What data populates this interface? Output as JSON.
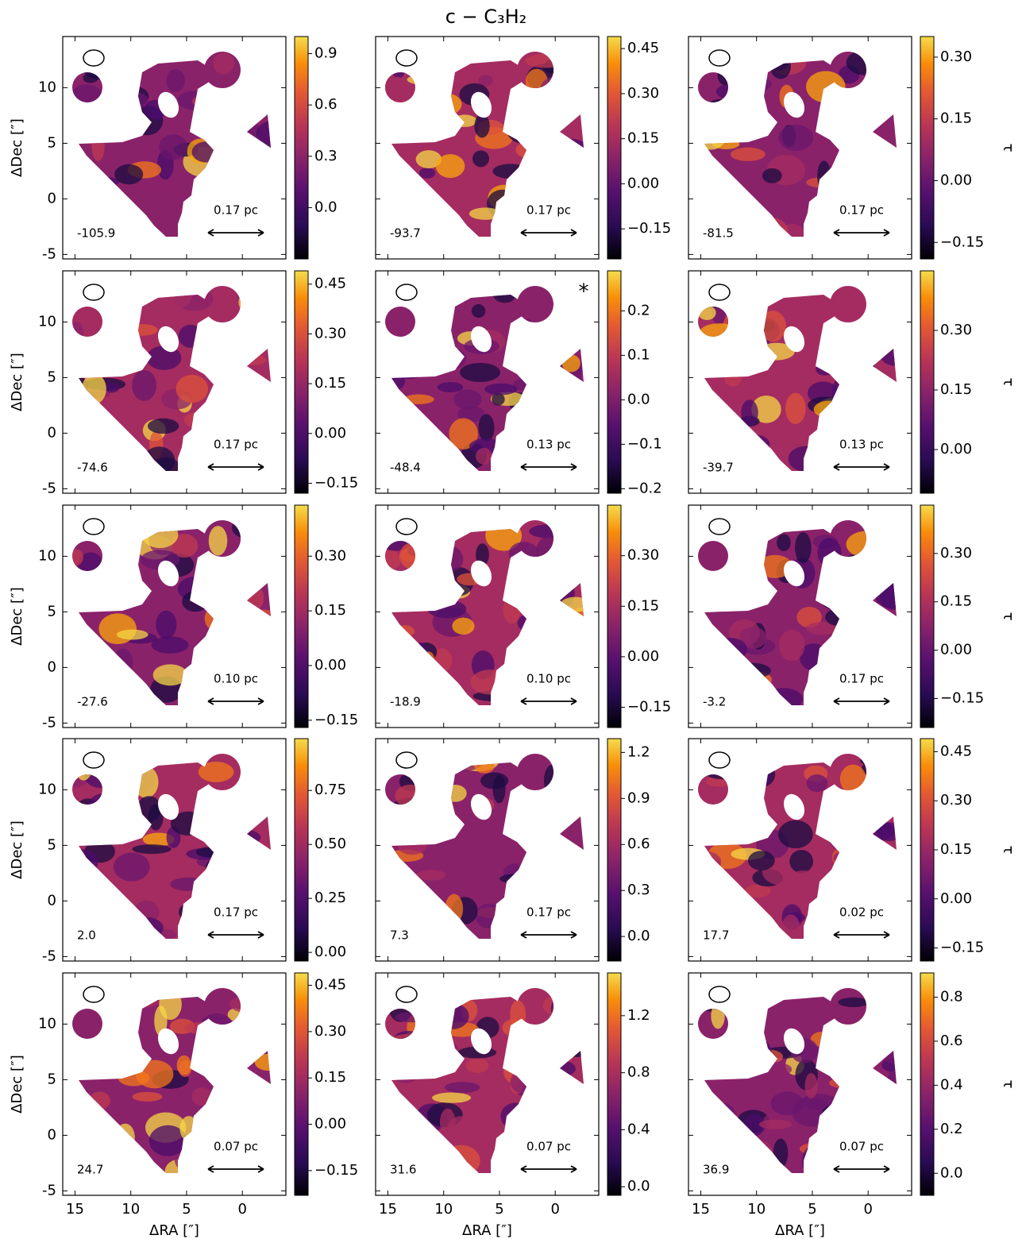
{
  "chart_data": {
    "type": "heatmap",
    "title": "c − C₃H₂",
    "xlabel": "ΔRA [″]",
    "ylabel": "ΔDec [″]",
    "colorbar_label": "τ",
    "xlim": [
      16.1,
      -3.9
    ],
    "ylim": [
      -5.4,
      14.6
    ],
    "xticks": [
      15,
      10,
      5,
      0
    ],
    "yticks": [
      -5,
      0,
      5,
      10
    ],
    "panels": [
      {
        "velocity": "-105.9",
        "scale_label": "0.17 pc",
        "clim": [
          -0.3,
          1.0
        ],
        "cticks": [
          {
            "value": 0,
            "label": "0.0"
          },
          0.3,
          0.6,
          0.9
        ]
      },
      {
        "velocity": "-93.7",
        "scale_label": "0.17 pc",
        "clim": [
          -0.25,
          0.49
        ],
        "cticks": [
          {
            "value": -0.15,
            "label": "−0.15"
          },
          {
            "value": 0,
            "label": "0.00"
          },
          0.15,
          {
            "value": 0.3,
            "label": "0.30"
          },
          0.45
        ]
      },
      {
        "velocity": "-81.5",
        "scale_label": "0.17 pc",
        "clim": [
          -0.19,
          0.35
        ],
        "cticks": [
          {
            "value": -0.15,
            "label": "−0.15"
          },
          {
            "value": 0,
            "label": "0.00"
          },
          0.15,
          {
            "value": 0.3,
            "label": "0.30"
          }
        ]
      },
      {
        "velocity": "-74.6",
        "scale_label": "0.17 pc",
        "clim": [
          -0.18,
          0.49
        ],
        "cticks": [
          {
            "value": -0.15,
            "label": "−0.15"
          },
          {
            "value": 0,
            "label": "0.00"
          },
          0.15,
          {
            "value": 0.3,
            "label": "0.30"
          },
          0.45
        ]
      },
      {
        "velocity": "-48.4",
        "scale_label": "0.13 pc",
        "annotation": "*",
        "clim": [
          -0.21,
          0.29
        ],
        "cticks": [
          {
            "value": -0.2,
            "label": "−0.2"
          },
          {
            "value": -0.1,
            "label": "−0.1"
          },
          {
            "value": 0,
            "label": "0.0"
          },
          0.1,
          0.2
        ]
      },
      {
        "velocity": "-39.7",
        "scale_label": "0.13 pc",
        "clim": [
          -0.11,
          0.45
        ],
        "cticks": [
          {
            "value": 0,
            "label": "0.00"
          },
          0.15,
          {
            "value": 0.3,
            "label": "0.30"
          }
        ]
      },
      {
        "velocity": "-27.6",
        "scale_label": "0.10 pc",
        "clim": [
          -0.17,
          0.44
        ],
        "cticks": [
          {
            "value": -0.15,
            "label": "−0.15"
          },
          {
            "value": 0,
            "label": "0.00"
          },
          0.15,
          {
            "value": 0.3,
            "label": "0.30"
          }
        ]
      },
      {
        "velocity": "-18.9",
        "scale_label": "0.10 pc",
        "clim": [
          -0.21,
          0.45
        ],
        "cticks": [
          {
            "value": -0.15,
            "label": "−0.15"
          },
          {
            "value": 0,
            "label": "0.00"
          },
          0.15,
          {
            "value": 0.3,
            "label": "0.30"
          }
        ]
      },
      {
        "velocity": "-3.2",
        "scale_label": "0.17 pc",
        "clim": [
          -0.24,
          0.45
        ],
        "cticks": [
          {
            "value": -0.15,
            "label": "−0.15"
          },
          {
            "value": 0,
            "label": "0.00"
          },
          0.15,
          {
            "value": 0.3,
            "label": "0.30"
          }
        ]
      },
      {
        "velocity": "2.0",
        "scale_label": "0.17 pc",
        "clim": [
          -0.04,
          0.99
        ],
        "cticks": [
          {
            "value": 0,
            "label": "0.00"
          },
          0.25,
          {
            "value": 0.5,
            "label": "0.50"
          },
          0.75
        ]
      },
      {
        "velocity": "7.3",
        "scale_label": "0.17 pc",
        "clim": [
          -0.16,
          1.29
        ],
        "cticks": [
          {
            "value": 0,
            "label": "0.0"
          },
          0.3,
          0.6,
          0.9,
          1.2
        ]
      },
      {
        "velocity": "17.7",
        "scale_label": "0.02 pc",
        "clim": [
          -0.19,
          0.49
        ],
        "cticks": [
          {
            "value": -0.15,
            "label": "−0.15"
          },
          {
            "value": 0,
            "label": "0.00"
          },
          0.15,
          {
            "value": 0.3,
            "label": "0.30"
          },
          0.45
        ]
      },
      {
        "velocity": "24.7",
        "scale_label": "0.07 pc",
        "clim": [
          -0.23,
          0.49
        ],
        "cticks": [
          {
            "value": -0.15,
            "label": "−0.15"
          },
          {
            "value": 0,
            "label": "0.00"
          },
          0.15,
          {
            "value": 0.3,
            "label": "0.30"
          },
          0.45
        ]
      },
      {
        "velocity": "31.6",
        "scale_label": "0.07 pc",
        "clim": [
          -0.06,
          1.5
        ],
        "cticks": [
          {
            "value": 0,
            "label": "0.0"
          },
          0.4,
          0.8,
          1.2
        ]
      },
      {
        "velocity": "36.9",
        "scale_label": "0.07 pc",
        "clim": [
          -0.1,
          0.91
        ],
        "cticks": [
          {
            "value": 0,
            "label": "0.0"
          },
          0.2,
          0.4,
          0.6,
          0.8
        ]
      }
    ]
  }
}
